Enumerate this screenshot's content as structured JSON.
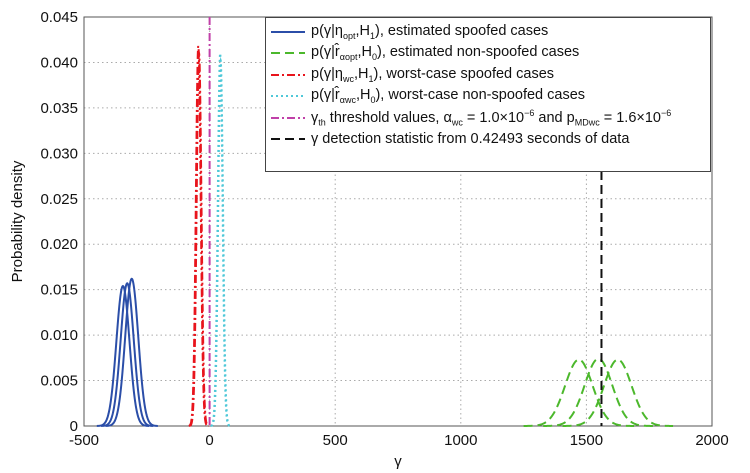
{
  "chart_data": {
    "type": "line",
    "title": "",
    "xlabel": "γ",
    "ylabel": "Probability density",
    "xlim": [
      -500,
      2000
    ],
    "ylim": [
      0,
      0.045
    ],
    "xticks": [
      "-500",
      "0",
      "500",
      "1000",
      "1500",
      "2000"
    ],
    "xtick_values": [
      -500,
      0,
      500,
      1000,
      1500,
      2000
    ],
    "yticks": [
      "0",
      "0.005",
      "0.010",
      "0.015",
      "0.020",
      "0.025",
      "0.030",
      "0.035",
      "0.040",
      "0.045"
    ],
    "ytick_values": [
      0,
      0.005,
      0.01,
      0.015,
      0.02,
      0.025,
      0.03,
      0.035,
      0.04,
      0.045
    ],
    "grid": true,
    "legend_position": "top-right",
    "series": [
      {
        "name": "estimated spoofed cases",
        "color": "#2b4ea8",
        "style": "solid",
        "curves": [
          {
            "mean": -345,
            "sd": 26,
            "peak": 0.0154
          },
          {
            "mean": -328,
            "sd": 26,
            "peak": 0.0157
          },
          {
            "mean": -310,
            "sd": 26,
            "peak": 0.0162
          }
        ]
      },
      {
        "name": "estimated non-spoofed cases",
        "color": "#4cb82c",
        "style": "dashed",
        "curves": [
          {
            "mean": 1470,
            "sd": 55,
            "peak": 0.0073
          },
          {
            "mean": 1548,
            "sd": 55,
            "peak": 0.0074
          },
          {
            "mean": 1625,
            "sd": 55,
            "peak": 0.0073
          }
        ]
      },
      {
        "name": "worst-case spoofed cases",
        "color": "#e8141c",
        "style": "dashdot",
        "curves": [
          {
            "mean": -45,
            "sd": 9.5,
            "peak": 0.0418
          },
          {
            "mean": -42,
            "sd": 9.5,
            "peak": 0.041
          }
        ]
      },
      {
        "name": "worst-case non-spoofed cases",
        "color": "#4fc8d8",
        "style": "dotted",
        "curves": [
          {
            "mean": 42,
            "sd": 9.5,
            "peak": 0.041
          },
          {
            "mean": 44,
            "sd": 9.5,
            "peak": 0.0402
          }
        ]
      }
    ],
    "vlines": [
      {
        "name": "threshold values",
        "x": 0,
        "color": "#c040a8",
        "style": "dashdot"
      },
      {
        "name": "detection statistic",
        "x": 1560,
        "color": "#111111",
        "style": "dashed"
      }
    ],
    "legend": [
      {
        "color": "#2b4ea8",
        "style": "solid",
        "parts": [
          {
            "t": "p(γ|η"
          },
          {
            "sub": "opt"
          },
          {
            "t": ",H"
          },
          {
            "sub": "1"
          },
          {
            "t": "), estimated spoofed cases"
          }
        ]
      },
      {
        "color": "#4cb82c",
        "style": "dashed",
        "parts": [
          {
            "t": "p(γ|r̂"
          },
          {
            "sub": "αopt"
          },
          {
            "t": ",H"
          },
          {
            "sub": "0"
          },
          {
            "t": "), estimated non-spoofed cases"
          }
        ]
      },
      {
        "color": "#e8141c",
        "style": "dashdot",
        "parts": [
          {
            "t": "p(γ|η"
          },
          {
            "sub": "wc"
          },
          {
            "t": ",H"
          },
          {
            "sub": "1"
          },
          {
            "t": "), worst-case spoofed cases"
          }
        ]
      },
      {
        "color": "#4fc8d8",
        "style": "dotted",
        "parts": [
          {
            "t": "p(γ|r̂"
          },
          {
            "sub": "αwc"
          },
          {
            "t": ",H"
          },
          {
            "sub": "0"
          },
          {
            "t": "), worst-case non-spoofed cases"
          }
        ]
      },
      {
        "color": "#c040a8",
        "style": "dashdot",
        "parts": [
          {
            "t": "γ"
          },
          {
            "sub": "th"
          },
          {
            "t": " threshold values, α"
          },
          {
            "sub": "wc"
          },
          {
            "t": " = 1.0×10"
          },
          {
            "sup": "−6"
          },
          {
            "t": " and p"
          },
          {
            "sub": "MDwc"
          },
          {
            "t": " = 1.6×10"
          },
          {
            "sup": "−6"
          }
        ]
      },
      {
        "color": "#111111",
        "style": "dashed",
        "parts": [
          {
            "t": "γ detection statistic from 0.42493 seconds of data"
          }
        ]
      }
    ]
  }
}
